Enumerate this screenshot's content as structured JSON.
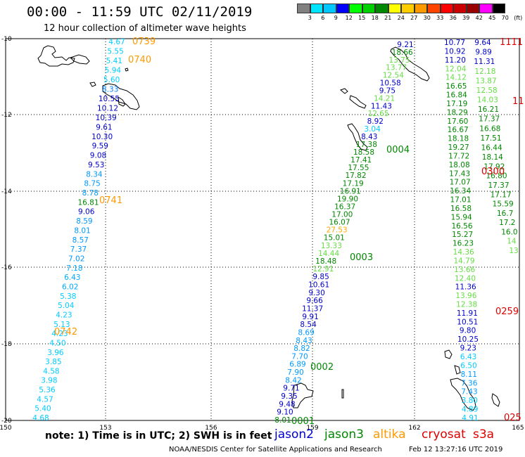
{
  "header": {
    "title": "00:00 - 11:59 UTC 02/11/2019",
    "subtitle": "12 hour collection of altimeter wave heights"
  },
  "colorbar": {
    "labels": [
      "3",
      "6",
      "9",
      "12",
      "15",
      "18",
      "21",
      "24",
      "27",
      "30",
      "33",
      "36",
      "39",
      "42",
      "45",
      "70",
      "(ft)"
    ],
    "colors": [
      "#808080",
      "#00e5ff",
      "#00c8ff",
      "#0000ff",
      "#00ff00",
      "#00d000",
      "#008800",
      "#ffff00",
      "#ffcc00",
      "#ff9900",
      "#ff4400",
      "#ff0000",
      "#cc0000",
      "#990000",
      "#ff00ff",
      "#000000"
    ]
  },
  "axes": {
    "lat_labels": [
      "-10",
      "-12",
      "-14",
      "-16",
      "-18",
      "-20"
    ],
    "lon_labels": [
      "150",
      "153",
      "156",
      "159",
      "162",
      "165"
    ]
  },
  "track_a": {
    "values": [
      "4.67",
      "5.55",
      "5.41",
      "5.94",
      "5.60",
      "8.33",
      "10.55",
      "10.12",
      "10.39",
      "9.61",
      "10.30",
      "9.59",
      "9.08",
      "9.53",
      "8.34",
      "8.75",
      "8.78",
      "16.81",
      "9.06",
      "8.59",
      "8.01",
      "8.57",
      "7.37",
      "7.02",
      "7.18",
      "6.43",
      "6.02",
      "5.38",
      "5.04",
      "4.23",
      "5.13",
      "4.23",
      "4.50",
      "3.96",
      "3.85",
      "4.58",
      "3.98",
      "5.36",
      "4.57",
      "5.40",
      "4.68"
    ],
    "colors": [
      "#00ccff",
      "#00ccff",
      "#00ccff",
      "#00ccff",
      "#00ccff",
      "#0080ff",
      "#0000cc",
      "#0000cc",
      "#0000cc",
      "#0000cc",
      "#0000cc",
      "#0000cc",
      "#0000cc",
      "#0000cc",
      "#0099ff",
      "#0099ff",
      "#0099ff",
      "#008800",
      "#0000cc",
      "#0099ff",
      "#0099ff",
      "#0099ff",
      "#0099ff",
      "#0099ff",
      "#00aaff",
      "#00aaff",
      "#00aaff",
      "#00ccff",
      "#00ccff",
      "#00ccff",
      "#00ccff",
      "#00ccff",
      "#00ccff",
      "#00ccff",
      "#00ccff",
      "#00ccff",
      "#00ccff",
      "#00ccff",
      "#00ccff",
      "#00ccff",
      "#00ccff"
    ]
  },
  "track_b": {
    "values": [
      "9.21",
      "18.66",
      "13.75",
      "13.77",
      "12.54",
      "10.58",
      "9.75",
      "14.21",
      "11.43",
      "12.65",
      "8.92",
      "3.04",
      "8.43",
      "17.38",
      "18.58",
      "17.41",
      "17.55",
      "17.82",
      "17.19",
      "16.91",
      "19.90",
      "16.37",
      "17.00",
      "16.07",
      "27.53",
      "15.01",
      "13.33",
      "14.44",
      "18.48",
      "12.91",
      "9.85",
      "10.61",
      "9.30",
      "9.66",
      "11.37",
      "9.91",
      "8.54",
      "8.69",
      "8.43",
      "8.82",
      "7.70",
      "6.89",
      "7.90",
      "8.42",
      "9.71",
      "9.35",
      "9.48",
      "9.10",
      "8.01"
    ],
    "colors": [
      "#0000cc",
      "#008800",
      "#66dd44",
      "#66dd44",
      "#66dd44",
      "#0000cc",
      "#0000cc",
      "#66dd44",
      "#0000cc",
      "#66dd44",
      "#0000cc",
      "#00ccff",
      "#0000cc",
      "#008800",
      "#008800",
      "#008800",
      "#008800",
      "#008800",
      "#008800",
      "#008800",
      "#008800",
      "#008800",
      "#008800",
      "#008800",
      "#ffaa00",
      "#008800",
      "#66dd44",
      "#66dd44",
      "#008800",
      "#66dd44",
      "#0000cc",
      "#0000cc",
      "#0000cc",
      "#0000cc",
      "#0000cc",
      "#0000cc",
      "#0000cc",
      "#0099ff",
      "#0099ff",
      "#0099ff",
      "#0099ff",
      "#0099ff",
      "#0099ff",
      "#0099ff",
      "#0000cc",
      "#0000cc",
      "#0000cc",
      "#0000cc",
      "#008800"
    ]
  },
  "track_c": {
    "values": [
      "10.77",
      "10.92",
      "11.20",
      "12.04",
      "14.12",
      "16.65",
      "16.84",
      "17.19",
      "18.29",
      "17.60",
      "16.67",
      "18.18",
      "19.27",
      "17.72",
      "18.08",
      "17.43",
      "17.07",
      "16.34",
      "17.01",
      "16.58",
      "15.94",
      "16.56",
      "15.27",
      "16.23",
      "14.36",
      "14.79",
      "13.66",
      "12.40",
      "11.36",
      "13.96",
      "12.38",
      "11.91",
      "10.51",
      "9.80",
      "10.25",
      "9.23",
      "6.43",
      "6.50",
      "8.11",
      "7.36",
      "7.43",
      "3.80",
      "4.89",
      "4.91"
    ],
    "colors": [
      "#0000cc",
      "#0000cc",
      "#0000cc",
      "#66dd44",
      "#66dd44",
      "#008800",
      "#008800",
      "#008800",
      "#008800",
      "#008800",
      "#008800",
      "#008800",
      "#008800",
      "#008800",
      "#008800",
      "#008800",
      "#008800",
      "#008800",
      "#008800",
      "#008800",
      "#008800",
      "#008800",
      "#008800",
      "#008800",
      "#66dd44",
      "#66dd44",
      "#66dd44",
      "#66dd44",
      "#0000cc",
      "#66dd44",
      "#66dd44",
      "#0000cc",
      "#0000cc",
      "#0000cc",
      "#0000cc",
      "#0000cc",
      "#00ccff",
      "#00ccff",
      "#0099ff",
      "#0099ff",
      "#0099ff",
      "#00ccff",
      "#00ccff",
      "#00ccff"
    ]
  },
  "track_d": {
    "values": [
      "9.64",
      "9.89",
      "11.31",
      "12.18",
      "13.87",
      "12.58",
      "14.03",
      "16.21",
      "17.37",
      "16.68",
      "17.51",
      "16.44",
      "18.14",
      "17.92",
      "16.80",
      "17.37",
      "17.17",
      "15.59",
      "16.7",
      "17.2",
      "16.0",
      "14",
      "13"
    ],
    "colors": [
      "#0000cc",
      "#0000cc",
      "#0000cc",
      "#66dd44",
      "#66dd44",
      "#66dd44",
      "#66dd44",
      "#008800",
      "#008800",
      "#008800",
      "#008800",
      "#008800",
      "#008800",
      "#008800",
      "#008800",
      "#008800",
      "#008800",
      "#008800",
      "#008800",
      "#008800",
      "#008800",
      "#66dd44",
      "#66dd44"
    ]
  },
  "time_tags": [
    {
      "text": "0739",
      "color": "#ff9900"
    },
    {
      "text": "0740",
      "color": "#ff9900"
    },
    {
      "text": "0741",
      "color": "#ff9900"
    },
    {
      "text": "0742",
      "color": "#ff9900"
    },
    {
      "text": "0004",
      "color": "#008800"
    },
    {
      "text": "0003",
      "color": "#008800"
    },
    {
      "text": "0002",
      "color": "#008800"
    },
    {
      "text": "0001",
      "color": "#008800"
    },
    {
      "text": "0300",
      "color": "#dd0000"
    },
    {
      "text": "0259",
      "color": "#dd0000"
    },
    {
      "text": "025",
      "color": "#dd0000"
    },
    {
      "text": "1111",
      "color": "#dd0000"
    },
    {
      "text": "11",
      "color": "#dd0000"
    }
  ],
  "footer": {
    "note": "note:  1) Time is in UTC;  2) SWH is in feet",
    "legend": [
      {
        "name": "jason2",
        "color": "#0000cc"
      },
      {
        "name": "jason3",
        "color": "#008800"
      },
      {
        "name": "altika",
        "color": "#ff9900"
      },
      {
        "name": "cryosat",
        "color": "#dd0000"
      },
      {
        "name": "s3a",
        "color": "#dd0000"
      }
    ],
    "credit": "NOAA/NESDIS Center for Satellite Applications and Research",
    "timestamp": "Feb 12 13:27:16 UTC 2019"
  }
}
